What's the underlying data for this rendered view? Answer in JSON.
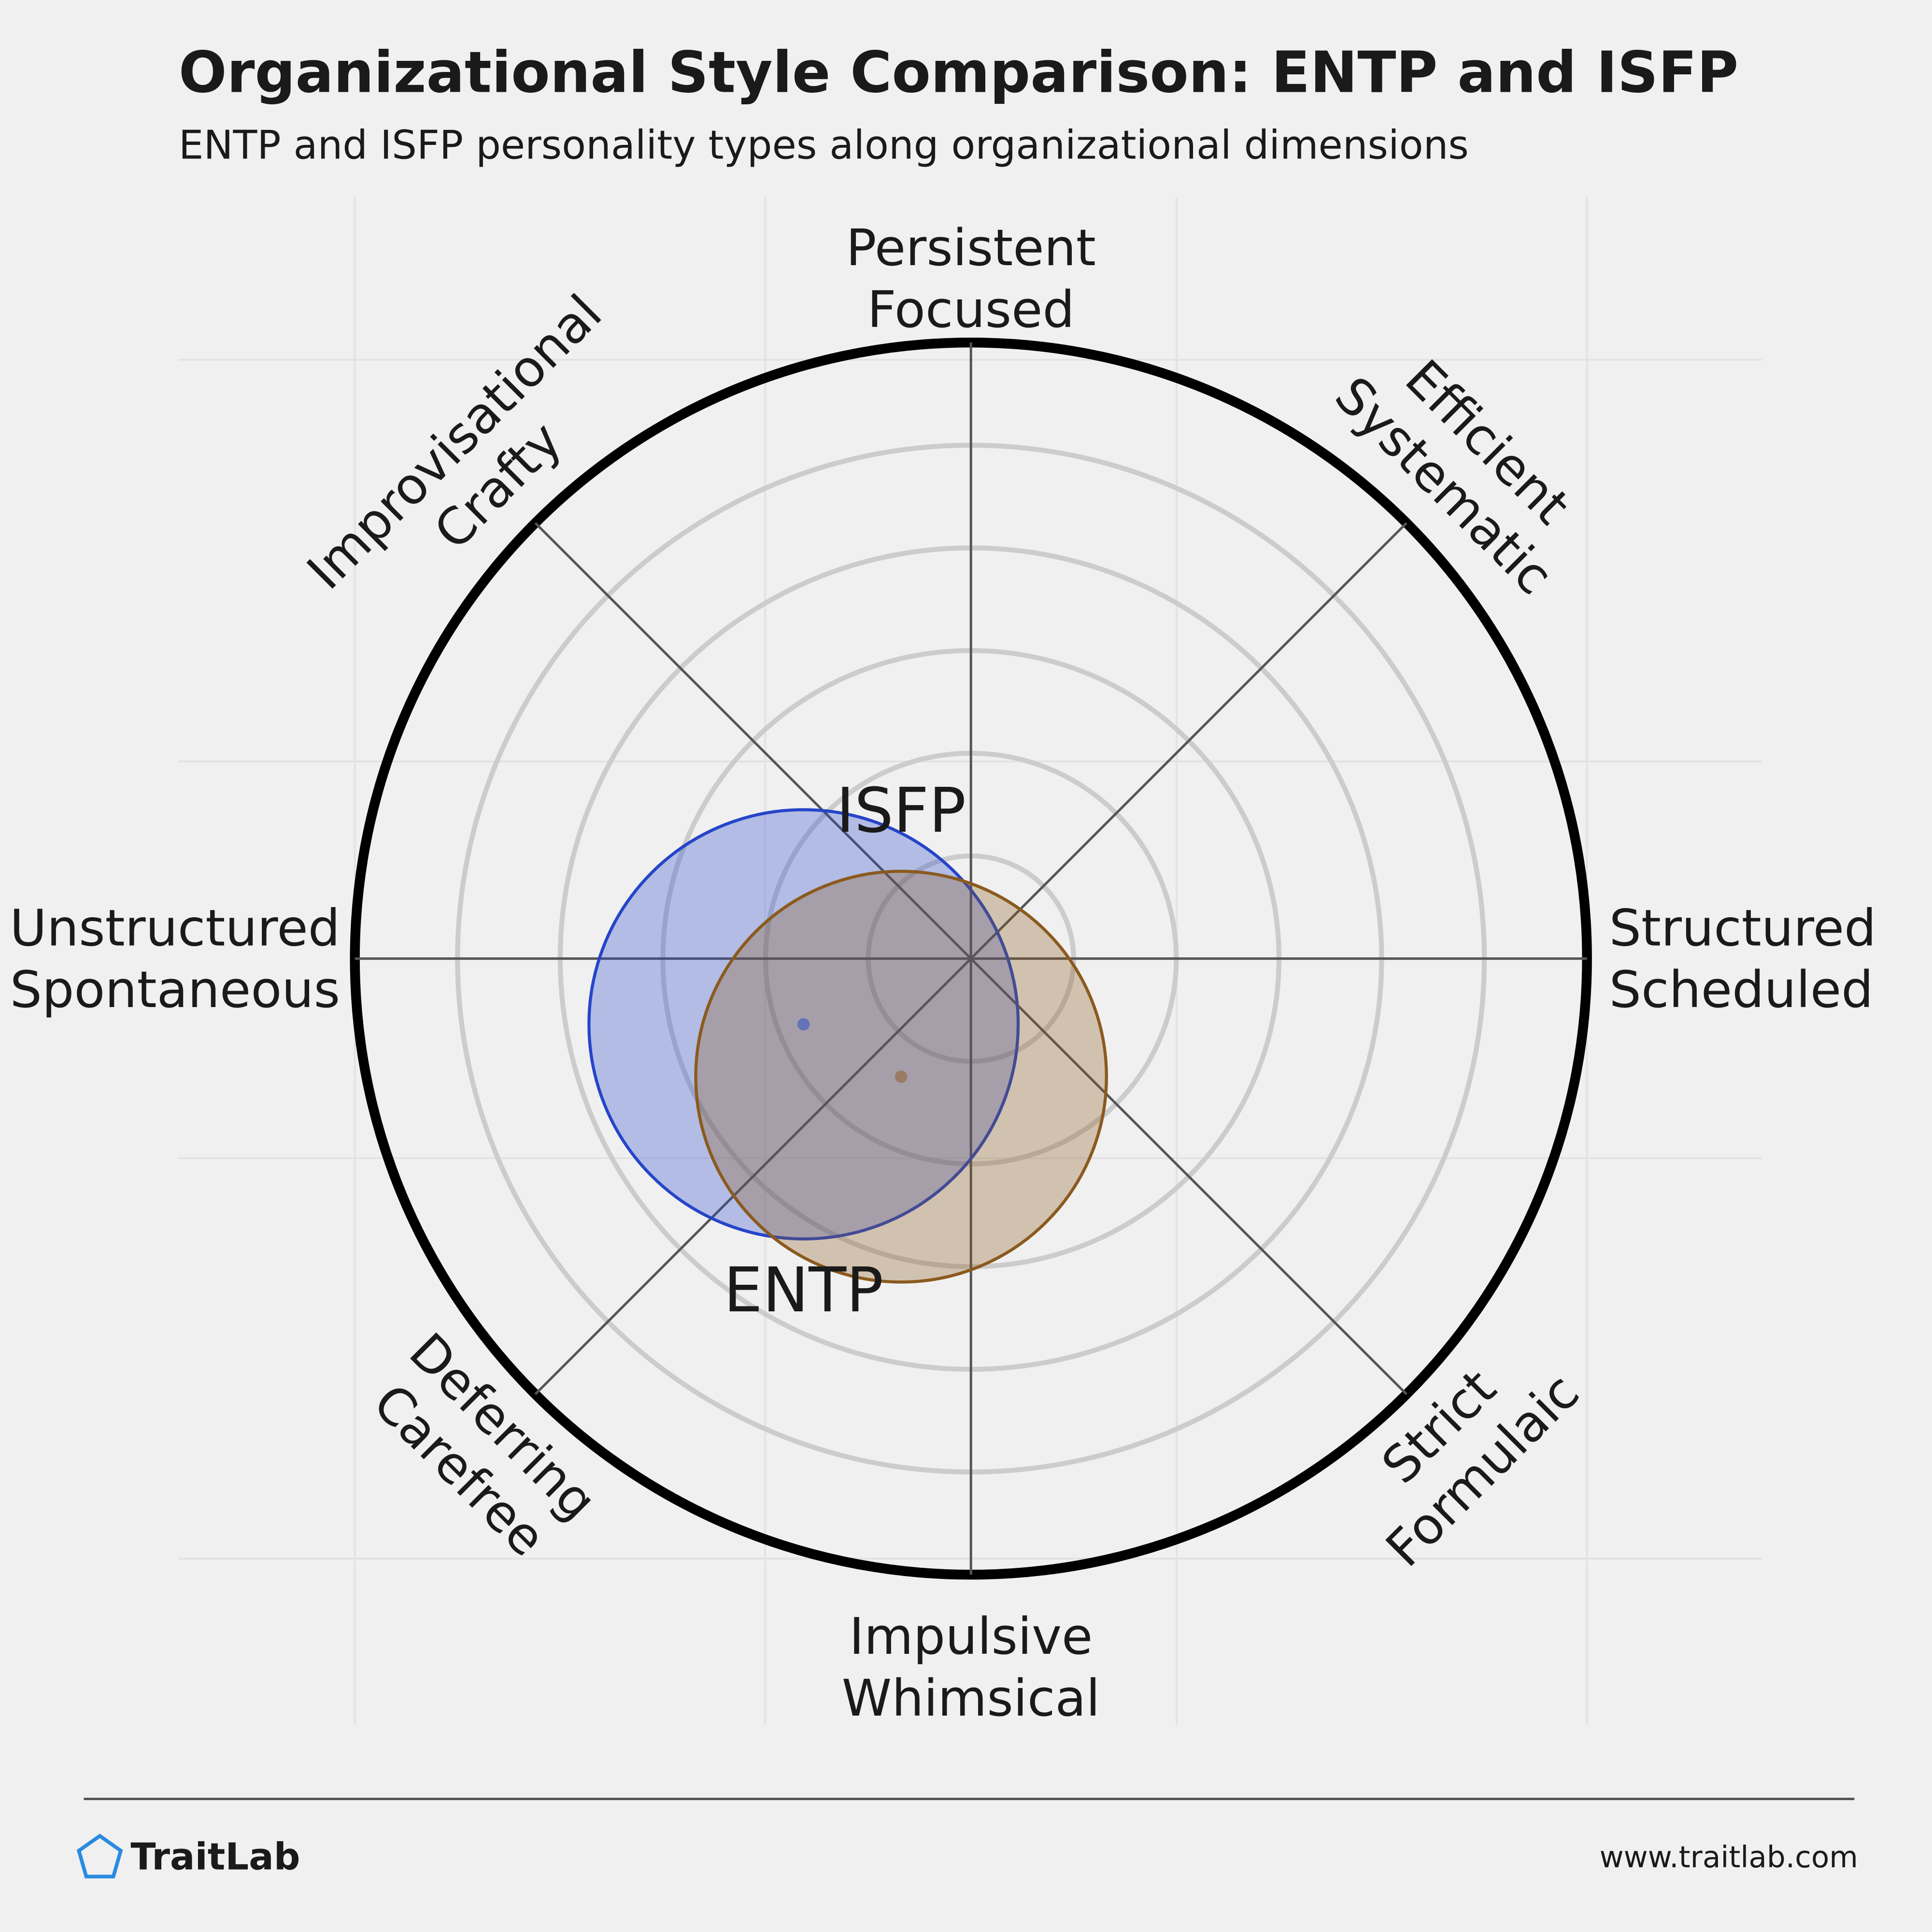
{
  "chart_data": {
    "type": "polar-circles",
    "title": "Organizational Style Comparison: ENTP and ISFP",
    "subtitle": "ENTP and ISFP personality types along organizational dimensions",
    "axis_labels": [
      [
        "Persistent",
        "Focused"
      ],
      [
        "Efficient",
        "Systematic"
      ],
      [
        "Structured",
        "Scheduled"
      ],
      [
        "Strict",
        "Formulaic"
      ],
      [
        "Impulsive",
        "Whimsical"
      ],
      [
        "Deferring",
        "Carefree"
      ],
      [
        "Unstructured",
        "Spontaneous"
      ],
      [
        "Improvisational",
        "Crafty"
      ]
    ],
    "rlim": [
      0,
      6
    ],
    "rticks": [
      1,
      2,
      3,
      4,
      5,
      6
    ],
    "series": [
      {
        "name": "ENTP",
        "color": "#2545c9",
        "x": -1.63,
        "y": -0.64,
        "r": 2.09
      },
      {
        "name": "ISFP",
        "color": "#8b5a1e",
        "x": -0.68,
        "y": -1.15,
        "r": 2.0
      }
    ],
    "brand": "TraitLab",
    "url": "www.traitlab.com"
  }
}
